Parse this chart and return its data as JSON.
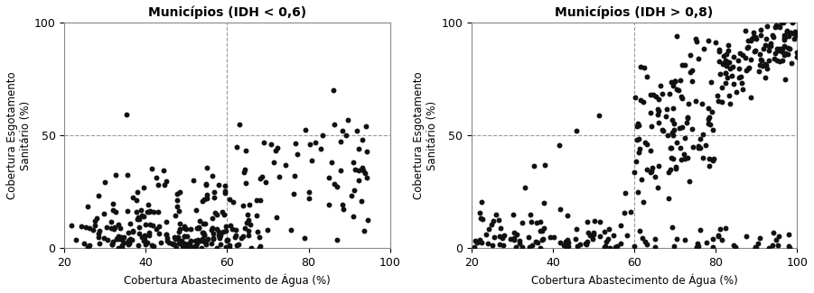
{
  "title1": "Municípios (IDH < 0,6)",
  "title2": "Municípios (IDH > 0,8)",
  "xlabel": "Cobertura Abastecimento de Água (%)",
  "ylabel": "Cobertura Esgotamento\nSanitário (%)",
  "xlim": [
    20,
    100
  ],
  "ylim": [
    0,
    100
  ],
  "xticks": [
    20,
    40,
    60,
    80,
    100
  ],
  "yticks": [
    0,
    50,
    100
  ],
  "vline_x": 60,
  "hline_y": 50,
  "dot_color": "#111111",
  "dot_size": 18,
  "background_color": "#ffffff",
  "seed1": 42,
  "seed2": 77
}
